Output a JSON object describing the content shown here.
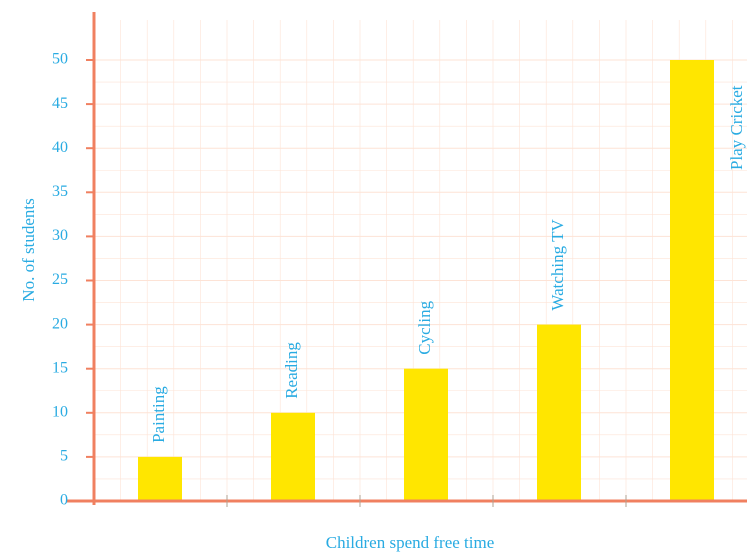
{
  "chart_data": {
    "type": "bar",
    "categories": [
      "Painting",
      "Reading",
      "Cycling",
      "Watching TV",
      "Play Cricket"
    ],
    "values": [
      5,
      10,
      15,
      20,
      50
    ],
    "xlabel": "Children spend free time",
    "ylabel": "No. of students",
    "ylim": [
      0,
      50
    ],
    "yticks": [
      0,
      5,
      10,
      15,
      20,
      25,
      30,
      35,
      40,
      45,
      50
    ],
    "grid": true,
    "colors": {
      "bar": "#ffe600",
      "axis": "#f08060",
      "text": "#29abe2",
      "grid": "#fde3d6"
    }
  }
}
